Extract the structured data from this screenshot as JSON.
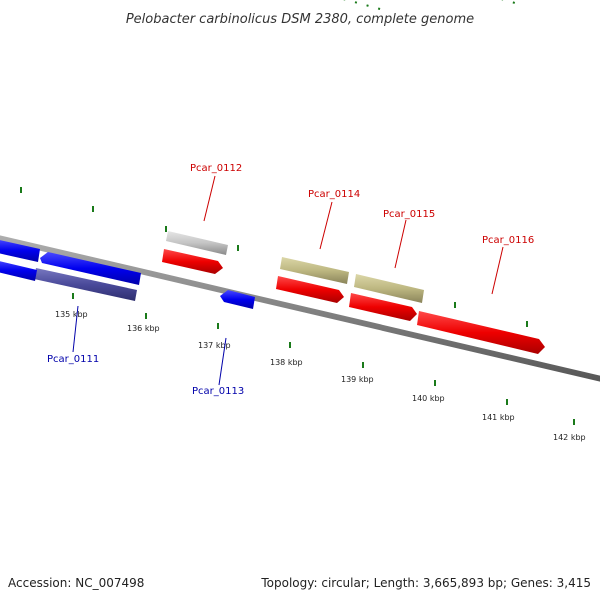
{
  "title": "Pelobacter carbinolicus DSM 2380, complete genome",
  "footer": {
    "accession": "Accession: NC_007498",
    "topology": "Topology: circular; Length: 3,665,893 bp; Genes: 3,415"
  },
  "colors": {
    "backbone": "#888888",
    "tick": "#1a7a1a",
    "label_forward": "#cc0000",
    "label_reverse": "#0000aa",
    "cds_forward": "#ee0000",
    "cds_reverse": "#0000ee",
    "gene_reverse": "#4a4a9a",
    "gene_grey": "#bdbdbd",
    "gene_olive": "#bdb781"
  },
  "kbp_labels": [
    {
      "text": "135 kbp",
      "kbp": 135
    },
    {
      "text": "136 kbp",
      "kbp": 136
    },
    {
      "text": "137 kbp",
      "kbp": 137
    },
    {
      "text": "138 kbp",
      "kbp": 138
    },
    {
      "text": "139 kbp",
      "kbp": 139
    },
    {
      "text": "140 kbp",
      "kbp": 140
    },
    {
      "text": "141 kbp",
      "kbp": 141
    },
    {
      "text": "142 kbp",
      "kbp": 142
    }
  ],
  "gene_labels": [
    {
      "id": "Pcar_0111",
      "strand": "reverse"
    },
    {
      "id": "Pcar_0112",
      "strand": "forward"
    },
    {
      "id": "Pcar_0113",
      "strand": "reverse"
    },
    {
      "id": "Pcar_0114",
      "strand": "forward"
    },
    {
      "id": "Pcar_0115",
      "strand": "forward"
    },
    {
      "id": "Pcar_0116",
      "strand": "forward"
    }
  ]
}
